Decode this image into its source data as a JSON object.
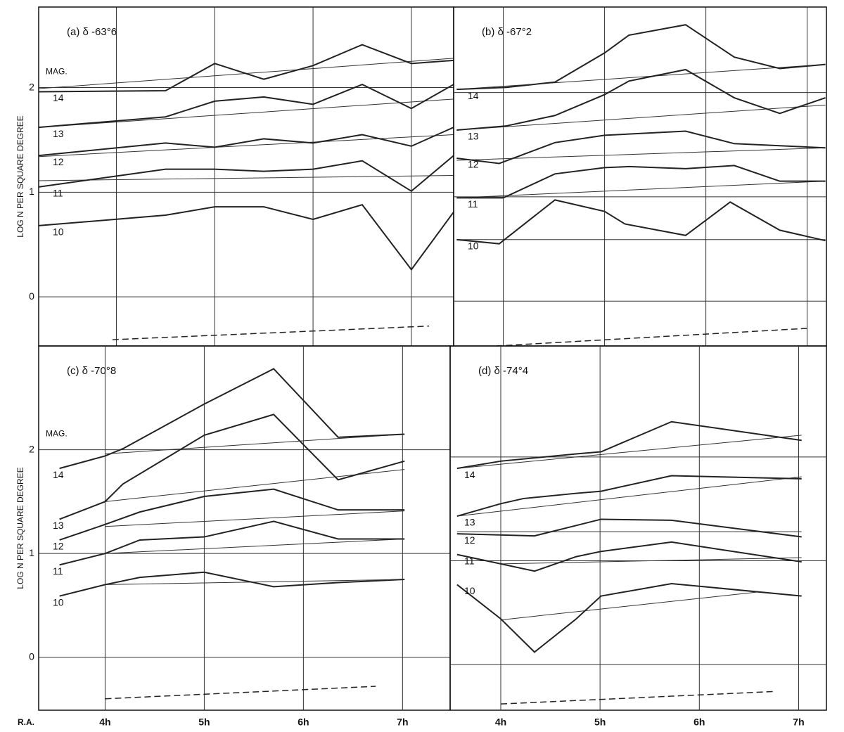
{
  "chart_data": [
    {
      "type": "line",
      "title": "(a) δ -63°6",
      "ylabel": "LOG N PER SQUARE DEGREE",
      "annotation": "MAG.",
      "xlim": [
        3.21,
        7.43
      ],
      "ylim": [
        -0.47,
        2.77
      ],
      "yticks": [
        0,
        1,
        2
      ],
      "ytick_labels": true,
      "xticks": [
        {
          "value": 4,
          "label": "4h"
        },
        {
          "value": 5,
          "label": "5h"
        },
        {
          "value": 6,
          "label": "6h"
        },
        {
          "value": 7,
          "label": "7h"
        }
      ],
      "xtick_labels": false,
      "series": [
        {
          "name": "14",
          "color": "#222",
          "x": [
            3.21,
            4.5,
            5,
            5.5,
            6,
            6.5,
            7,
            7.43
          ],
          "values": [
            1.96,
            1.97,
            2.23,
            2.08,
            2.21,
            2.41,
            2.23,
            2.26
          ]
        },
        {
          "name": "13",
          "color": "#222",
          "x": [
            3.21,
            4.5,
            5,
            5.5,
            6,
            6.5,
            7,
            7.43
          ],
          "values": [
            1.62,
            1.72,
            1.87,
            1.91,
            1.84,
            2.03,
            1.8,
            2.03
          ]
        },
        {
          "name": "12",
          "color": "#222",
          "x": [
            3.21,
            4.5,
            5,
            5.5,
            6,
            6.5,
            7,
            7.43
          ],
          "values": [
            1.35,
            1.47,
            1.43,
            1.51,
            1.47,
            1.55,
            1.44,
            1.62
          ]
        },
        {
          "name": "11",
          "color": "#222",
          "x": [
            3.21,
            4.5,
            5,
            5.5,
            6,
            6.5,
            7,
            7.43
          ],
          "values": [
            1.05,
            1.22,
            1.22,
            1.2,
            1.22,
            1.3,
            1.01,
            1.35
          ]
        },
        {
          "name": "10",
          "color": "#222",
          "x": [
            3.21,
            4.5,
            5,
            5.5,
            6,
            6.5,
            7,
            7.43
          ],
          "values": [
            0.68,
            0.78,
            0.86,
            0.86,
            0.74,
            0.88,
            0.26,
            0.81
          ]
        }
      ],
      "fits": [
        {
          "x": [
            3.21,
            7.43
          ],
          "values": [
            1.99,
            2.28
          ]
        },
        {
          "x": [
            3.21,
            7.43
          ],
          "values": [
            1.62,
            1.89
          ]
        },
        {
          "x": [
            3.21,
            7.43
          ],
          "values": [
            1.34,
            1.55
          ]
        },
        {
          "x": [
            3.21,
            7.43
          ],
          "values": [
            1.11,
            1.16
          ]
        }
      ],
      "dashed_line": {
        "x": [
          3.96,
          7.18
        ],
        "values": [
          -0.41,
          -0.28
        ]
      }
    },
    {
      "type": "line",
      "title": "(b) δ -67°2",
      "xlim": [
        3.51,
        7.19
      ],
      "ylim": [
        -0.43,
        2.82
      ],
      "yticks": [
        0,
        1,
        2
      ],
      "ytick_labels": false,
      "xticks": [
        {
          "value": 4,
          "label": "4h"
        },
        {
          "value": 5,
          "label": "5h"
        },
        {
          "value": 6,
          "label": "6h"
        },
        {
          "value": 7,
          "label": "7h"
        }
      ],
      "xtick_labels": false,
      "series": [
        {
          "name": "14",
          "color": "#222",
          "x": [
            3.54,
            4.03,
            4.51,
            5.0,
            5.24,
            5.8,
            6.28,
            6.73,
            7.18
          ],
          "values": [
            2.03,
            2.05,
            2.1,
            2.38,
            2.55,
            2.65,
            2.34,
            2.23,
            2.27
          ]
        },
        {
          "name": "13",
          "color": "#222",
          "x": [
            3.54,
            4.03,
            4.51,
            5.0,
            5.24,
            5.8,
            6.28,
            6.73,
            7.18
          ],
          "values": [
            1.64,
            1.68,
            1.78,
            1.98,
            2.11,
            2.22,
            1.95,
            1.8,
            1.95
          ]
        },
        {
          "name": "12",
          "color": "#222",
          "x": [
            3.54,
            3.96,
            4.51,
            5.0,
            5.8,
            6.28,
            7.18
          ],
          "values": [
            1.37,
            1.32,
            1.52,
            1.59,
            1.63,
            1.51,
            1.47
          ]
        },
        {
          "name": "11",
          "color": "#222",
          "x": [
            3.54,
            4.0,
            4.51,
            5.0,
            5.24,
            5.8,
            6.28,
            6.73,
            7.18
          ],
          "values": [
            0.99,
            0.99,
            1.22,
            1.28,
            1.29,
            1.27,
            1.3,
            1.15,
            1.15
          ]
        },
        {
          "name": "10",
          "color": "#222",
          "x": [
            3.54,
            3.96,
            4.51,
            5.0,
            5.2,
            5.8,
            6.24,
            6.73,
            7.18
          ],
          "values": [
            0.59,
            0.55,
            0.97,
            0.86,
            0.74,
            0.63,
            0.95,
            0.68,
            0.58
          ]
        }
      ],
      "fits": [
        {
          "x": [
            3.54,
            7.18
          ],
          "values": [
            2.03,
            2.27
          ]
        },
        {
          "x": [
            3.54,
            7.18
          ],
          "values": [
            1.64,
            1.88
          ]
        },
        {
          "x": [
            3.54,
            7.18
          ],
          "values": [
            1.35,
            1.47
          ]
        },
        {
          "x": [
            3.54,
            7.18
          ],
          "values": [
            0.99,
            1.15
          ]
        },
        {
          "x": [
            3.54,
            7.18
          ],
          "values": [
            0.59,
            0.59
          ]
        }
      ],
      "dashed_line": {
        "x": [
          3.93,
          7.02
        ],
        "values": [
          -0.43,
          -0.26
        ]
      }
    },
    {
      "type": "line",
      "title": "(c) δ -70°8",
      "ylabel": "LOG N PER SQUARE DEGREE",
      "annotation": "MAG.",
      "xlabel": "R.A.",
      "xlim": [
        3.33,
        7.48
      ],
      "ylim": [
        -0.51,
        3.0
      ],
      "yticks": [
        0,
        1,
        2
      ],
      "ytick_labels": true,
      "xticks": [
        {
          "value": 4,
          "label": "4h"
        },
        {
          "value": 5,
          "label": "5h"
        },
        {
          "value": 6,
          "label": "6h"
        },
        {
          "value": 7,
          "label": "7h"
        }
      ],
      "xtick_labels": true,
      "series": [
        {
          "name": "14",
          "color": "#222",
          "x": [
            3.54,
            4.0,
            4.18,
            5.0,
            5.7,
            6.35,
            7.02
          ],
          "values": [
            1.82,
            1.94,
            2.01,
            2.44,
            2.78,
            2.12,
            2.15
          ]
        },
        {
          "name": "13",
          "color": "#222",
          "x": [
            3.54,
            4.0,
            4.18,
            5.0,
            5.7,
            6.35,
            7.02
          ],
          "values": [
            1.33,
            1.5,
            1.67,
            2.14,
            2.34,
            1.71,
            1.89
          ]
        },
        {
          "name": "12",
          "color": "#222",
          "x": [
            3.54,
            4.0,
            4.35,
            5.0,
            5.7,
            6.35,
            7.02
          ],
          "values": [
            1.13,
            1.28,
            1.4,
            1.55,
            1.62,
            1.42,
            1.42
          ]
        },
        {
          "name": "11",
          "color": "#222",
          "x": [
            3.54,
            4.0,
            4.35,
            5.0,
            5.7,
            6.35,
            7.02
          ],
          "values": [
            0.89,
            1.0,
            1.13,
            1.16,
            1.31,
            1.14,
            1.14
          ]
        },
        {
          "name": "10",
          "color": "#222",
          "x": [
            3.54,
            4.0,
            4.35,
            5.0,
            5.7,
            6.35,
            7.02
          ],
          "values": [
            0.59,
            0.7,
            0.77,
            0.82,
            0.68,
            0.72,
            0.75
          ]
        }
      ],
      "fits": [
        {
          "x": [
            4.0,
            7.02
          ],
          "values": [
            1.96,
            2.15
          ]
        },
        {
          "x": [
            4.0,
            7.02
          ],
          "values": [
            1.5,
            1.81
          ]
        },
        {
          "x": [
            4.0,
            7.02
          ],
          "values": [
            1.26,
            1.41
          ]
        },
        {
          "x": [
            4.0,
            7.02
          ],
          "values": [
            1.0,
            1.14
          ]
        },
        {
          "x": [
            4.0,
            7.02
          ],
          "values": [
            0.7,
            0.75
          ]
        }
      ],
      "dashed_line": {
        "x": [
          4.0,
          6.73
        ],
        "values": [
          -0.4,
          -0.28
        ]
      }
    },
    {
      "type": "line",
      "title": "(d) δ -74°4",
      "xlim": [
        3.49,
        7.28
      ],
      "ylim": [
        -0.44,
        3.07
      ],
      "yticks": [
        0,
        1,
        2
      ],
      "ytick_labels": false,
      "xticks": [
        {
          "value": 4,
          "label": "4h"
        },
        {
          "value": 5,
          "label": "5h"
        },
        {
          "value": 6,
          "label": "6h"
        },
        {
          "value": 7,
          "label": "7h"
        }
      ],
      "xtick_labels": true,
      "series": [
        {
          "name": "14",
          "color": "#222",
          "x": [
            3.56,
            4.0,
            4.76,
            5.01,
            5.72,
            7.03
          ],
          "values": [
            1.89,
            1.96,
            2.03,
            2.05,
            2.34,
            2.16
          ]
        },
        {
          "name": "13",
          "color": "#222",
          "x": [
            3.56,
            4.0,
            4.23,
            4.76,
            5.01,
            5.72,
            7.03
          ],
          "values": [
            1.43,
            1.55,
            1.6,
            1.65,
            1.67,
            1.82,
            1.79
          ]
        },
        {
          "name": "12",
          "color": "#222",
          "x": [
            3.56,
            4.34,
            4.76,
            5.01,
            5.72,
            7.03
          ],
          "values": [
            1.26,
            1.24,
            1.34,
            1.4,
            1.39,
            1.23
          ]
        },
        {
          "name": "11",
          "color": "#222",
          "x": [
            3.56,
            4.0,
            4.34,
            4.76,
            5.01,
            5.72,
            7.03
          ],
          "values": [
            1.06,
            0.97,
            0.9,
            1.04,
            1.09,
            1.18,
            0.99
          ]
        },
        {
          "name": "10",
          "color": "#222",
          "x": [
            3.56,
            4.0,
            4.34,
            4.76,
            5.01,
            5.72,
            7.03
          ],
          "values": [
            0.77,
            0.44,
            0.12,
            0.44,
            0.66,
            0.78,
            0.66
          ]
        }
      ],
      "fits": [
        {
          "x": [
            3.56,
            7.03
          ],
          "values": [
            1.89,
            2.21
          ]
        },
        {
          "x": [
            3.56,
            7.03
          ],
          "values": [
            1.43,
            1.81
          ]
        },
        {
          "x": [
            3.56,
            7.03
          ],
          "values": [
            1.28,
            1.28
          ]
        },
        {
          "x": [
            4.0,
            7.03
          ],
          "values": [
            0.97,
            1.03
          ]
        },
        {
          "x": [
            4.0,
            6.6
          ],
          "values": [
            0.43,
            0.7
          ]
        }
      ],
      "dashed_line": {
        "x": [
          4.0,
          6.75
        ],
        "values": [
          -0.38,
          -0.26
        ]
      }
    }
  ]
}
